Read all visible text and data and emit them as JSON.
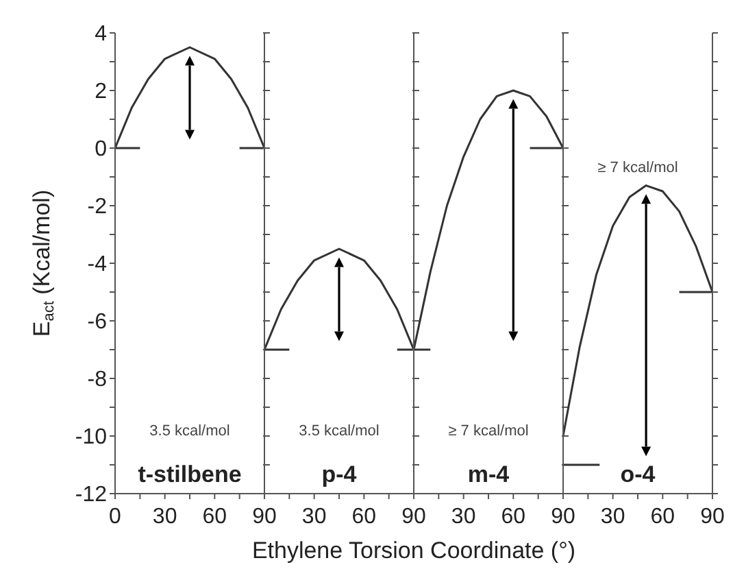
{
  "chart_data": [
    {
      "type": "line",
      "xlabel": "Ethylene Torsion Coordinate (°)",
      "ylabel": "E$_{act}$ (Kcal/mol)",
      "xlim": [
        0,
        90
      ],
      "xticks": [
        0,
        {
          "value": 15,
          "label": null
        },
        30,
        {
          "value": 45,
          "label": null
        },
        60,
        {
          "value": 75,
          "label": null
        },
        90
      ],
      "ylim": [
        -12,
        4
      ],
      "yticks": [
        -12,
        {
          "value": -11,
          "label": null
        },
        -10,
        {
          "value": -9,
          "label": null
        },
        -8,
        {
          "value": -7,
          "label": null
        },
        -6,
        {
          "value": -5,
          "label": null
        },
        -4,
        {
          "value": -3,
          "label": null
        },
        -2,
        {
          "value": -1,
          "label": null
        },
        0,
        {
          "value": 1,
          "label": null
        },
        2,
        {
          "value": 3,
          "label": null
        },
        4
      ],
      "line_style": "solid",
      "series": [
        {
          "color": "#333333",
          "x": [
            0,
            10,
            20,
            30,
            45,
            60,
            70,
            80,
            90
          ],
          "values": [
            0,
            1.4,
            2.4,
            3.1,
            3.5,
            3.1,
            2.4,
            1.4,
            0
          ]
        },
        {
          "color": "#333333",
          "x": [
            0,
            15
          ],
          "values": [
            0,
            0
          ]
        },
        {
          "color": "#333333",
          "x": [
            75,
            90
          ],
          "values": [
            0,
            0
          ]
        }
      ],
      "annotations": [
        "3.5 kcal/mol",
        "t-stilbene"
      ]
    },
    {
      "type": "line",
      "xlim": [
        0,
        90
      ],
      "xticks": [
        {
          "value": 0,
          "label": null
        },
        {
          "value": 15,
          "label": null
        },
        30,
        {
          "value": 45,
          "label": null
        },
        60,
        {
          "value": 75,
          "label": null
        },
        90
      ],
      "ylim": [
        -12,
        4
      ],
      "yticks": [
        -12,
        {
          "value": -11,
          "label": null
        },
        -10,
        {
          "value": -9,
          "label": null
        },
        -8,
        {
          "value": -7,
          "label": null
        },
        -6,
        {
          "value": -5,
          "label": null
        },
        -4,
        {
          "value": -3,
          "label": null
        },
        -2,
        {
          "value": -1,
          "label": null
        },
        0,
        {
          "value": 1,
          "label": null
        },
        2,
        {
          "value": 3,
          "label": null
        },
        4
      ],
      "tick_labels": "x",
      "line_style": "solid",
      "series": [
        {
          "color": "#333333",
          "x": [
            0,
            10,
            20,
            30,
            45,
            60,
            70,
            80,
            90
          ],
          "values": [
            -7,
            -5.6,
            -4.6,
            -3.9,
            -3.5,
            -3.9,
            -4.6,
            -5.6,
            -7
          ]
        },
        {
          "color": "#333333",
          "x": [
            0,
            15
          ],
          "values": [
            -7,
            -7
          ]
        },
        {
          "color": "#333333",
          "x": [
            80,
            90
          ],
          "values": [
            -7,
            -7
          ]
        }
      ],
      "annotations": [
        "3.5 kcal/mol",
        "p-4"
      ]
    },
    {
      "type": "line",
      "xlim": [
        0,
        90
      ],
      "xticks": [
        {
          "value": 0,
          "label": null
        },
        {
          "value": 15,
          "label": null
        },
        30,
        {
          "value": 45,
          "label": null
        },
        60,
        {
          "value": 75,
          "label": null
        },
        90
      ],
      "ylim": [
        -12,
        4
      ],
      "yticks": [
        -12,
        {
          "value": -11,
          "label": null
        },
        -10,
        {
          "value": -9,
          "label": null
        },
        -8,
        {
          "value": -7,
          "label": null
        },
        -6,
        {
          "value": -5,
          "label": null
        },
        -4,
        {
          "value": -3,
          "label": null
        },
        -2,
        {
          "value": -1,
          "label": null
        },
        0,
        {
          "value": 1,
          "label": null
        },
        2,
        {
          "value": 3,
          "label": null
        },
        4
      ],
      "tick_labels": "x",
      "line_style": "solid",
      "series": [
        {
          "color": "#333333",
          "x": [
            0,
            10,
            20,
            30,
            40,
            50,
            60,
            70,
            80,
            90
          ],
          "values": [
            -7,
            -4.3,
            -2,
            -0.3,
            1,
            1.8,
            2,
            1.8,
            1.1,
            0
          ]
        },
        {
          "color": "#333333",
          "x": [
            0,
            10
          ],
          "values": [
            -7,
            -7
          ]
        },
        {
          "color": "#333333",
          "x": [
            70,
            90
          ],
          "values": [
            0,
            0
          ]
        }
      ],
      "annotations": [
        "≥ 7 kcal/mol",
        "m-4"
      ]
    },
    {
      "type": "line",
      "xlim": [
        0,
        90
      ],
      "xticks": [
        {
          "value": 0,
          "label": null
        },
        {
          "value": 15,
          "label": null
        },
        30,
        {
          "value": 45,
          "label": null
        },
        60,
        {
          "value": 75,
          "label": null
        },
        90
      ],
      "ylim": [
        -12,
        4
      ],
      "yticks": [
        -12,
        {
          "value": -11,
          "label": null
        },
        -10,
        {
          "value": -9,
          "label": null
        },
        -8,
        {
          "value": -7,
          "label": null
        },
        -6,
        {
          "value": -5,
          "label": null
        },
        -4,
        {
          "value": -3,
          "label": null
        },
        -2,
        {
          "value": -1,
          "label": null
        },
        0,
        {
          "value": 1,
          "label": null
        },
        2,
        {
          "value": 3,
          "label": null
        },
        4
      ],
      "tick_labels": "x",
      "line_style": "solid",
      "series": [
        {
          "color": "#333333",
          "x": [
            0,
            10,
            20,
            30,
            40,
            50,
            60,
            70,
            80,
            90
          ],
          "values": [
            -10,
            -6.9,
            -4.4,
            -2.7,
            -1.7,
            -1.3,
            -1.5,
            -2.2,
            -3.4,
            -5
          ]
        },
        {
          "color": "#333333",
          "x": [
            0,
            22
          ],
          "values": [
            -11,
            -11
          ]
        },
        {
          "color": "#333333",
          "x": [
            70,
            90
          ],
          "values": [
            -5,
            -5
          ]
        }
      ],
      "annotations": [
        "≥ 7 kcal/mol",
        "o-4"
      ]
    }
  ]
}
